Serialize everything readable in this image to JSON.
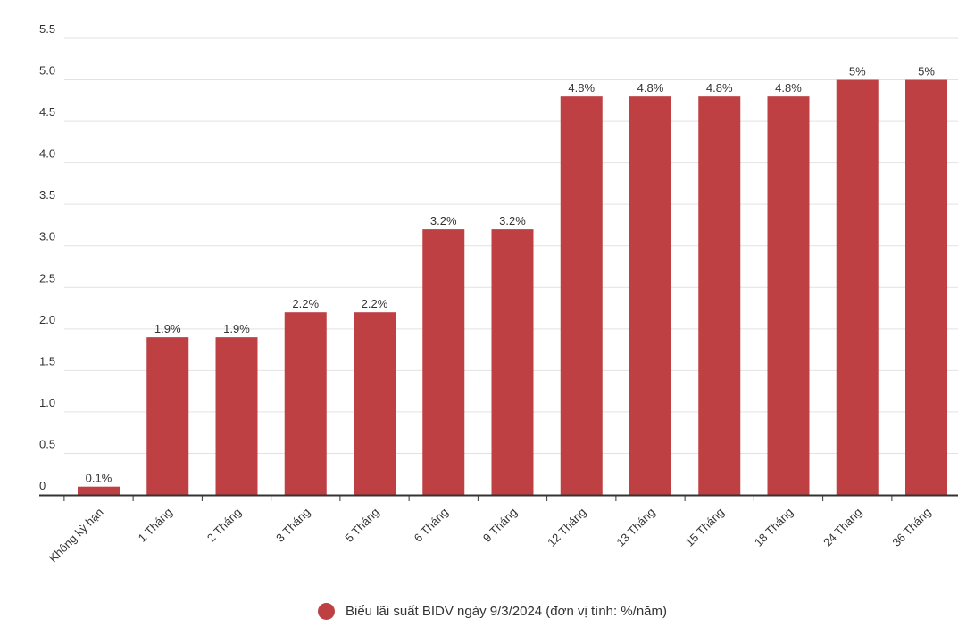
{
  "chart_data": {
    "type": "bar",
    "categories": [
      "Không kỳ hạn",
      "1 Tháng",
      "2 Tháng",
      "3 Tháng",
      "5 Tháng",
      "6 Tháng",
      "9 Tháng",
      "12 Tháng",
      "13 Tháng",
      "15 Tháng",
      "18 Tháng",
      "24 Tháng",
      "36 Tháng"
    ],
    "series": [
      {
        "name": "Biểu lãi suất BIDV ngày 9/3/2024 (đơn vị tính: %/năm)",
        "values": [
          0.1,
          1.9,
          1.9,
          2.2,
          2.2,
          3.2,
          3.2,
          4.8,
          4.8,
          4.8,
          4.8,
          5,
          5
        ],
        "labels": [
          "0.1%",
          "1.9%",
          "1.9%",
          "2.2%",
          "2.2%",
          "3.2%",
          "3.2%",
          "4.8%",
          "4.8%",
          "4.8%",
          "4.8%",
          "5%",
          "5%"
        ],
        "color": "#be4043"
      }
    ],
    "yticks": [
      "0",
      "0.5",
      "1.0",
      "1.5",
      "2.0",
      "2.5",
      "3.0",
      "3.5",
      "4.0",
      "4.5",
      "5.0",
      "5.5"
    ],
    "ylim": [
      0,
      5.5
    ],
    "grid": true,
    "legend_position": "bottom",
    "title": "",
    "xlabel": "",
    "ylabel": ""
  },
  "colors": {
    "bar": "#be4043",
    "grid": "#e2e2e2",
    "axis": "#333333",
    "text": "#333333"
  }
}
